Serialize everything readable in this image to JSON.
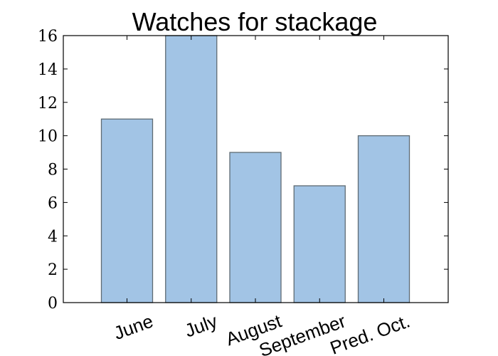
{
  "chart_data": {
    "type": "bar",
    "title": "Watches for stackage",
    "xlabel": "",
    "ylabel": "",
    "categories": [
      "June",
      "July",
      "August",
      "September",
      "Pred. Oct."
    ],
    "values": [
      11,
      16,
      9,
      7,
      10
    ],
    "ylim": [
      0,
      16
    ],
    "yticks": [
      0,
      2,
      4,
      6,
      8,
      10,
      12,
      14,
      16
    ],
    "ytick_labels": [
      "0",
      "2",
      "4",
      "6",
      "8",
      "10",
      "12",
      "14",
      "16"
    ],
    "grid": false,
    "bar_color": "#a2c4e5",
    "bar_edge_color": "#5f6b73"
  }
}
